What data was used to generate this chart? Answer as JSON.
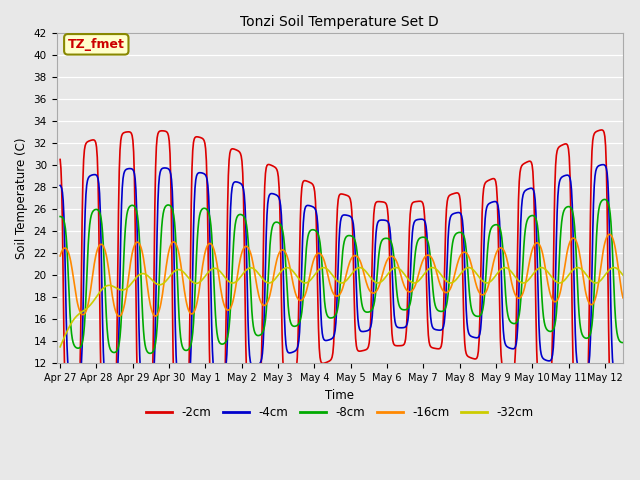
{
  "title": "Tonzi Soil Temperature Set D",
  "xlabel": "Time",
  "ylabel": "Soil Temperature (C)",
  "ylim": [
    12,
    42
  ],
  "yticks": [
    12,
    14,
    16,
    18,
    20,
    22,
    24,
    26,
    28,
    30,
    32,
    34,
    36,
    38,
    40,
    42
  ],
  "series_labels": [
    "-2cm",
    "-4cm",
    "-8cm",
    "-16cm",
    "-32cm"
  ],
  "series_colors": [
    "#dd0000",
    "#0000cc",
    "#00aa00",
    "#ff8800",
    "#cccc00"
  ],
  "series_linewidths": [
    1.2,
    1.2,
    1.2,
    1.2,
    1.2
  ],
  "background_color": "#e8e8e8",
  "plot_bg_color": "#e8e8e8",
  "annotation_text": "TZ_fmet",
  "annotation_color": "#cc0000",
  "annotation_bg": "#ffffcc",
  "annotation_border": "#888800",
  "xtick_labels": [
    "Apr 27",
    "Apr 28",
    "Apr 29",
    "Apr 30",
    "May 1",
    "May 2",
    "May 3",
    "May 4",
    "May 5",
    "May 6",
    "May 7",
    "May 8",
    "May 9",
    "May 10",
    "May 11",
    "May 12"
  ],
  "n_days": 15.5,
  "points_per_day": 48,
  "figwidth": 6.4,
  "figheight": 4.8,
  "dpi": 100
}
